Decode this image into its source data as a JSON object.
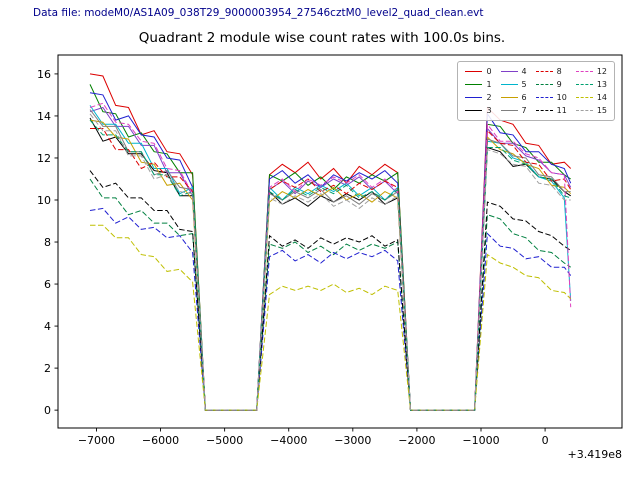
{
  "header": {
    "data_file_label": "Data file: modeM0/AS1A09_038T29_9000003954_27546cztM0_level2_quad_clean.evt",
    "color": "#00008b"
  },
  "chart_data": {
    "type": "line",
    "title": "Quadrant 2 module wise count rates with 100.0s bins.",
    "xlabel": "",
    "ylabel": "",
    "x_offset_label": "+3.419e8",
    "grid": false,
    "legend_position": "upper right",
    "legend_ncol": 4,
    "xlim": [
      -7600,
      1200
    ],
    "ylim": [
      -0.85,
      16.9
    ],
    "x_ticks": [
      -7000,
      -6000,
      -5000,
      -4000,
      -3000,
      -2000,
      -1000,
      0
    ],
    "x_tick_labels": [
      "−7000",
      "−6000",
      "−5000",
      "−4000",
      "−3000",
      "−2000",
      "−1000",
      "0"
    ],
    "y_ticks": [
      0,
      2,
      4,
      6,
      8,
      10,
      12,
      14,
      16
    ],
    "y_tick_labels": [
      "0",
      "2",
      "4",
      "6",
      "8",
      "10",
      "12",
      "14",
      "16"
    ],
    "x": [
      -7100,
      -6900,
      -6700,
      -6500,
      -6300,
      -6100,
      -5900,
      -5700,
      -5500,
      -5300,
      -5100,
      -4900,
      -4700,
      -4500,
      -4300,
      -4100,
      -3900,
      -3700,
      -3500,
      -3300,
      -3100,
      -2900,
      -2700,
      -2500,
      -2300,
      -2100,
      -1900,
      -1700,
      -1500,
      -1300,
      -1100,
      -900,
      -700,
      -500,
      -300,
      -100,
      100,
      300,
      400
    ],
    "series": [
      {
        "name": "0",
        "color": "#dc0000",
        "dash": false,
        "values": [
          16.0,
          15.9,
          14.5,
          14.4,
          13.1,
          13.3,
          12.3,
          12.2,
          11.2,
          0,
          0,
          0,
          0,
          0,
          11.2,
          11.7,
          11.3,
          11.8,
          11.0,
          11.5,
          10.8,
          11.6,
          11.2,
          11.7,
          11.3,
          0,
          0,
          0,
          0,
          0,
          0,
          14.4,
          13.8,
          13.6,
          12.7,
          12.6,
          11.7,
          11.8,
          11.5
        ]
      },
      {
        "name": "1",
        "color": "#008000",
        "dash": false,
        "values": [
          15.5,
          14.2,
          14.1,
          13.0,
          13.2,
          12.3,
          12.2,
          11.3,
          11.3,
          0,
          0,
          0,
          0,
          0,
          11.2,
          10.9,
          11.3,
          10.7,
          11.1,
          10.5,
          11.1,
          10.8,
          11.2,
          10.9,
          11.3,
          0,
          0,
          0,
          0,
          0,
          0,
          13.6,
          13.5,
          12.7,
          12.5,
          11.8,
          11.8,
          11.2,
          11.0
        ]
      },
      {
        "name": "2",
        "color": "#2020d0",
        "dash": false,
        "values": [
          15.1,
          15.0,
          13.8,
          14.0,
          13.1,
          13.0,
          12.0,
          11.9,
          10.6,
          0,
          0,
          0,
          0,
          0,
          11.0,
          11.4,
          10.8,
          11.2,
          10.6,
          11.2,
          10.9,
          11.3,
          11.0,
          11.4,
          10.8,
          0,
          0,
          0,
          0,
          0,
          0,
          14.1,
          13.2,
          13.1,
          12.3,
          12.3,
          11.7,
          11.5,
          10.8
        ]
      },
      {
        "name": "3",
        "color": "#000000",
        "dash": false,
        "values": [
          13.9,
          12.8,
          13.0,
          12.2,
          12.2,
          11.4,
          11.3,
          10.2,
          10.2,
          0,
          0,
          0,
          0,
          0,
          10.4,
          9.8,
          10.1,
          9.7,
          10.2,
          9.9,
          10.3,
          10.0,
          10.4,
          9.8,
          10.1,
          0,
          0,
          0,
          0,
          0,
          0,
          12.5,
          12.3,
          11.6,
          11.7,
          11.1,
          11.0,
          10.4,
          10.2
        ]
      },
      {
        "name": "4",
        "color": "#8040c8",
        "dash": false,
        "values": [
          14.2,
          14.4,
          13.5,
          13.5,
          12.6,
          12.6,
          11.3,
          11.3,
          10.2,
          0,
          0,
          0,
          0,
          0,
          10.5,
          10.9,
          10.3,
          10.9,
          10.6,
          11.0,
          10.7,
          11.1,
          10.5,
          10.9,
          10.3,
          0,
          0,
          0,
          0,
          0,
          0,
          13.4,
          12.7,
          12.7,
          12.1,
          11.9,
          11.3,
          11.2,
          10.6
        ]
      },
      {
        "name": "5",
        "color": "#00b5cc",
        "dash": false,
        "values": [
          14.5,
          13.6,
          13.6,
          12.7,
          12.7,
          11.5,
          11.5,
          10.3,
          10.6,
          0,
          0,
          0,
          0,
          0,
          10.6,
          10.0,
          10.6,
          10.3,
          10.7,
          10.4,
          10.8,
          10.2,
          10.6,
          10.0,
          10.6,
          0,
          0,
          0,
          0,
          0,
          0,
          12.8,
          12.7,
          12.0,
          11.8,
          11.1,
          10.9,
          10.1,
          5.2
        ]
      },
      {
        "name": "6",
        "color": "#c8a000",
        "dash": false,
        "values": [
          13.8,
          13.7,
          13.0,
          12.9,
          11.8,
          11.7,
          10.7,
          10.8,
          10.0,
          0,
          0,
          0,
          0,
          0,
          9.9,
          10.4,
          10.1,
          10.5,
          10.2,
          10.6,
          10.0,
          10.3,
          9.9,
          10.4,
          10.1,
          0,
          0,
          0,
          0,
          0,
          0,
          13.0,
          12.4,
          12.2,
          11.7,
          11.5,
          10.7,
          10.6,
          10.3
        ]
      },
      {
        "name": "7",
        "color": "#7f7f7f",
        "dash": false,
        "values": [
          14.3,
          13.5,
          13.5,
          12.3,
          12.3,
          11.2,
          11.4,
          10.6,
          10.5,
          0,
          0,
          0,
          0,
          0,
          10.3,
          10.0,
          10.4,
          10.1,
          10.5,
          9.9,
          10.2,
          9.8,
          10.3,
          10.0,
          10.4,
          0,
          0,
          0,
          0,
          0,
          0,
          12.9,
          12.7,
          12.1,
          12.0,
          11.2,
          11.1,
          10.4,
          10.4
        ]
      },
      {
        "name": "8",
        "color": "#dc0000",
        "dash": true,
        "values": [
          13.4,
          13.4,
          12.4,
          12.4,
          11.5,
          11.8,
          11.1,
          11.1,
          10.4,
          0,
          0,
          0,
          0,
          0,
          10.5,
          10.9,
          10.6,
          11.0,
          10.4,
          10.7,
          10.3,
          10.8,
          10.5,
          10.9,
          10.6,
          0,
          0,
          0,
          0,
          0,
          0,
          13.3,
          12.7,
          12.6,
          11.8,
          11.7,
          10.9,
          11.0,
          10.5
        ]
      },
      {
        "name": "9",
        "color": "#008040",
        "dash": true,
        "values": [
          11.0,
          10.1,
          10.1,
          9.3,
          9.5,
          8.9,
          8.9,
          8.3,
          8.4,
          0,
          0,
          0,
          0,
          0,
          7.9,
          7.7,
          8.0,
          7.5,
          7.8,
          7.4,
          7.9,
          7.6,
          7.9,
          7.7,
          8.0,
          0,
          0,
          0,
          0,
          0,
          0,
          9.3,
          9.1,
          8.4,
          8.2,
          7.6,
          7.5,
          7.0,
          6.8
        ]
      },
      {
        "name": "10",
        "color": "#2020d0",
        "dash": true,
        "values": [
          9.5,
          9.6,
          8.9,
          9.2,
          8.6,
          8.7,
          8.2,
          8.3,
          7.5,
          0,
          0,
          0,
          0,
          0,
          7.3,
          7.6,
          7.1,
          7.4,
          7.0,
          7.5,
          7.2,
          7.5,
          7.3,
          7.6,
          7.1,
          0,
          0,
          0,
          0,
          0,
          0,
          8.4,
          7.8,
          7.7,
          7.2,
          7.3,
          6.8,
          6.8,
          6.4
        ]
      },
      {
        "name": "11",
        "color": "#000000",
        "dash": true,
        "values": [
          11.4,
          10.6,
          10.8,
          10.1,
          10.1,
          9.5,
          9.5,
          8.6,
          8.5,
          0,
          0,
          0,
          0,
          0,
          8.3,
          7.8,
          8.1,
          7.7,
          8.2,
          7.9,
          8.2,
          8.0,
          8.3,
          7.8,
          8.1,
          0,
          0,
          0,
          0,
          0,
          0,
          9.9,
          9.7,
          9.1,
          9.0,
          8.5,
          8.3,
          7.8,
          7.6
        ]
      },
      {
        "name": "12",
        "color": "#e040c0",
        "dash": true,
        "values": [
          14.4,
          14.6,
          13.7,
          13.6,
          12.8,
          12.7,
          11.5,
          11.4,
          10.3,
          0,
          0,
          0,
          0,
          0,
          10.6,
          11.0,
          10.4,
          11.0,
          10.7,
          11.1,
          10.8,
          11.2,
          10.6,
          11.0,
          10.4,
          0,
          0,
          0,
          0,
          0,
          0,
          13.6,
          12.8,
          12.8,
          12.2,
          12.0,
          11.3,
          11.2,
          4.9
        ]
      },
      {
        "name": "13",
        "color": "#00a070",
        "dash": true,
        "values": [
          13.8,
          13.1,
          13.1,
          12.3,
          12.3,
          11.2,
          11.2,
          10.2,
          10.4,
          0,
          0,
          0,
          0,
          0,
          10.4,
          10.0,
          10.5,
          10.2,
          10.6,
          10.3,
          10.7,
          10.1,
          10.4,
          10.0,
          10.5,
          0,
          0,
          0,
          0,
          0,
          0,
          12.5,
          12.5,
          11.9,
          11.7,
          11.1,
          11.0,
          10.2,
          10.1
        ]
      },
      {
        "name": "14",
        "color": "#bfbf00",
        "dash": true,
        "values": [
          8.8,
          8.8,
          8.2,
          8.2,
          7.4,
          7.3,
          6.6,
          6.7,
          6.1,
          0,
          0,
          0,
          0,
          0,
          5.5,
          5.9,
          5.7,
          5.9,
          5.7,
          6.0,
          5.6,
          5.8,
          5.5,
          5.9,
          5.7,
          0,
          0,
          0,
          0,
          0,
          0,
          7.4,
          7.0,
          6.8,
          6.4,
          6.3,
          5.7,
          5.6,
          5.3
        ]
      },
      {
        "name": "15",
        "color": "#a0a0a0",
        "dash": true,
        "values": [
          14.1,
          13.3,
          13.3,
          12.1,
          12.1,
          11.0,
          11.2,
          10.4,
          10.3,
          0,
          0,
          0,
          0,
          0,
          10.1,
          9.8,
          10.2,
          9.9,
          10.3,
          9.7,
          10.0,
          9.6,
          10.1,
          9.8,
          10.2,
          0,
          0,
          0,
          0,
          0,
          0,
          12.4,
          12.2,
          11.7,
          11.6,
          10.8,
          10.7,
          10.0,
          10.0
        ]
      }
    ]
  }
}
